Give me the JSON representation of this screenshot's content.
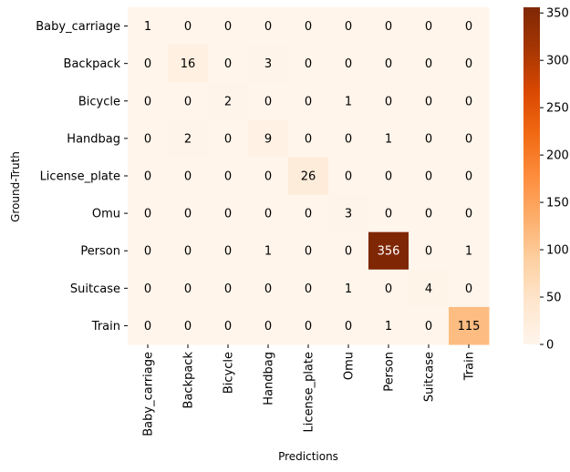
{
  "chart_data": {
    "type": "heatmap",
    "title": "",
    "xlabel": "Predictions",
    "ylabel": "Ground-Truth",
    "x_categories": [
      "Baby_carriage",
      "Backpack",
      "Bicycle",
      "Handbag",
      "License_plate",
      "Omu",
      "Person",
      "Suitcase",
      "Train"
    ],
    "y_categories": [
      "Baby_carriage",
      "Backpack",
      "Bicycle",
      "Handbag",
      "License_plate",
      "Omu",
      "Person",
      "Suitcase",
      "Train"
    ],
    "values": [
      [
        1,
        0,
        0,
        0,
        0,
        0,
        0,
        0,
        0
      ],
      [
        0,
        16,
        0,
        3,
        0,
        0,
        0,
        0,
        0
      ],
      [
        0,
        0,
        2,
        0,
        0,
        1,
        0,
        0,
        0
      ],
      [
        0,
        2,
        0,
        9,
        0,
        0,
        1,
        0,
        0
      ],
      [
        0,
        0,
        0,
        0,
        26,
        0,
        0,
        0,
        0
      ],
      [
        0,
        0,
        0,
        0,
        0,
        3,
        0,
        0,
        0
      ],
      [
        0,
        0,
        0,
        1,
        0,
        0,
        356,
        0,
        1
      ],
      [
        0,
        0,
        0,
        0,
        0,
        1,
        0,
        4,
        0
      ],
      [
        0,
        0,
        0,
        0,
        0,
        0,
        1,
        0,
        115
      ]
    ],
    "colorbar": {
      "colormap": "Oranges",
      "range": [
        0,
        356
      ],
      "ticks": [
        0,
        50,
        100,
        150,
        200,
        250,
        300,
        350
      ]
    },
    "colors": {
      "low": "#fff5eb",
      "high": "#7f2704"
    }
  }
}
